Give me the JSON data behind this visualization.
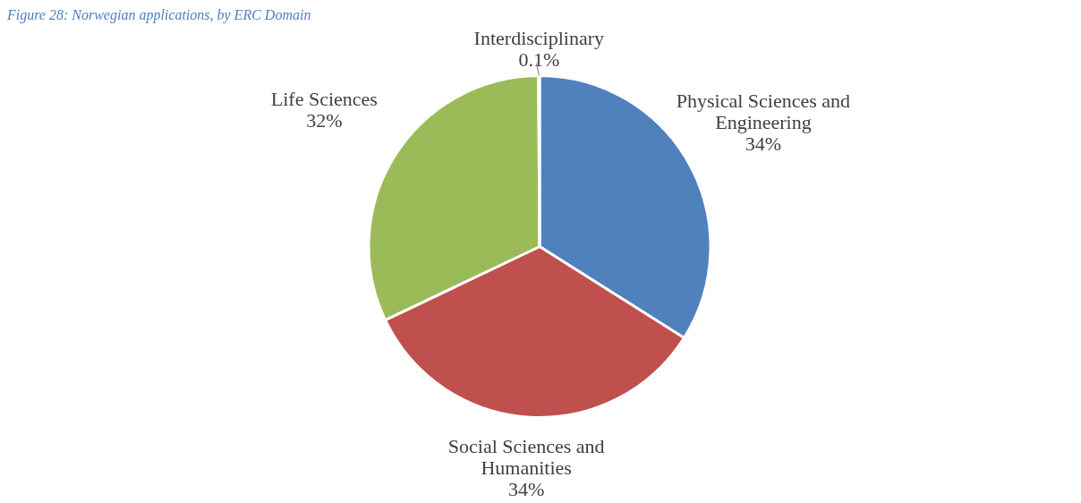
{
  "chart_data": {
    "type": "pie",
    "title": "Figure 28: Norwegian applications, by ERC Domain",
    "categories": [
      "Physical Sciences and Engineering",
      "Social Sciences and Humanities",
      "Life Sciences",
      "Interdisciplinary"
    ],
    "values": [
      34,
      34,
      32,
      0.1
    ],
    "colors": [
      "#4f81bd",
      "#c0504d",
      "#9bbb59",
      "#8064a2"
    ],
    "value_labels": [
      "34%",
      "34%",
      "32%",
      "0.1%"
    ],
    "legend": false
  }
}
